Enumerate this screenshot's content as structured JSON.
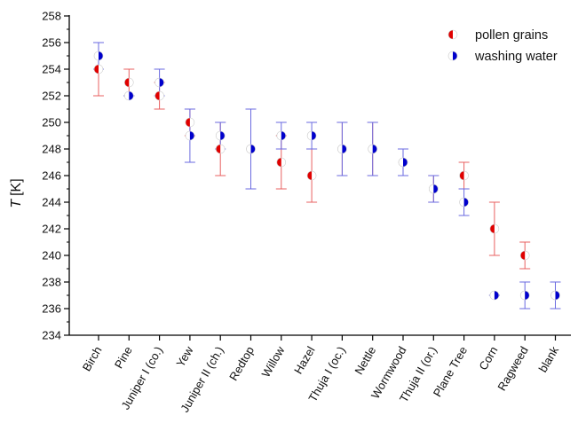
{
  "chart_data": {
    "type": "scatter",
    "title": "",
    "ylabel_symbol": "T",
    "ylabel_unit": "[K]",
    "xlabel": "",
    "categories": [
      "Birch",
      "Pine",
      "Juniper I (co.)",
      "Yew",
      "Juniper II (ch.)",
      "Redtop",
      "Willow",
      "Hazel",
      "Thuja I (oc.)",
      "Nettle",
      "Wormwood",
      "Thuja II (or.)",
      "Plane Tree",
      "Corn",
      "Ragweed",
      "blank"
    ],
    "ylim": [
      234,
      258
    ],
    "yticks": [
      234,
      236,
      238,
      240,
      242,
      244,
      246,
      248,
      250,
      252,
      254,
      256,
      258
    ],
    "grid": false,
    "legend_position": "top-right",
    "series": [
      {
        "name": "pollen grains",
        "color": "#e00000",
        "marker": "half-filled-left-circle",
        "points": [
          {
            "category": "Birch",
            "y": 254,
            "err_low": 252,
            "err_high": 256
          },
          {
            "category": "Pine",
            "y": 253,
            "err_low": 252,
            "err_high": 254
          },
          {
            "category": "Juniper I (co.)",
            "y": 252,
            "err_low": 251,
            "err_high": 253
          },
          {
            "category": "Yew",
            "y": 250,
            "err_low": 249,
            "err_high": 251
          },
          {
            "category": "Juniper II (ch.)",
            "y": 248,
            "err_low": 246,
            "err_high": 250
          },
          {
            "category": "Redtop",
            "y": 248,
            "err_low": 245,
            "err_high": 251
          },
          {
            "category": "Willow",
            "y": 247,
            "err_low": 245,
            "err_high": 249
          },
          {
            "category": "Hazel",
            "y": 246,
            "err_low": 244,
            "err_high": 248
          },
          {
            "category": "Thuja I (oc.)",
            "y": 248,
            "err_low": 246,
            "err_high": 250
          },
          {
            "category": "Nettle",
            "y": 248,
            "err_low": 246,
            "err_high": 250
          },
          {
            "category": "Wormwood",
            "y": 247,
            "err_low": 246,
            "err_high": 248
          },
          {
            "category": "Thuja II (or.)",
            "y": 245,
            "err_low": 244,
            "err_high": 246
          },
          {
            "category": "Plane Tree",
            "y": 246,
            "err_low": 245,
            "err_high": 247
          },
          {
            "category": "Corn",
            "y": 242,
            "err_low": 240,
            "err_high": 244
          },
          {
            "category": "Ragweed",
            "y": 240,
            "err_low": 239,
            "err_high": 241
          },
          {
            "category": "blank",
            "y": 237,
            "err_low": 236,
            "err_high": 238
          }
        ]
      },
      {
        "name": "washing water",
        "color": "#0000cc",
        "marker": "half-filled-right-circle",
        "points": [
          {
            "category": "Birch",
            "y": 255,
            "err_low": 254,
            "err_high": 256
          },
          {
            "category": "Pine",
            "y": 252,
            "err_low": 252,
            "err_high": 252
          },
          {
            "category": "Juniper I (co.)",
            "y": 253,
            "err_low": 252,
            "err_high": 254
          },
          {
            "category": "Yew",
            "y": 249,
            "err_low": 247,
            "err_high": 251
          },
          {
            "category": "Juniper II (ch.)",
            "y": 249,
            "err_low": 248,
            "err_high": 250
          },
          {
            "category": "Redtop",
            "y": 248,
            "err_low": 245,
            "err_high": 251
          },
          {
            "category": "Willow",
            "y": 249,
            "err_low": 248,
            "err_high": 250
          },
          {
            "category": "Hazel",
            "y": 249,
            "err_low": 248,
            "err_high": 250
          },
          {
            "category": "Thuja I (oc.)",
            "y": 248,
            "err_low": 246,
            "err_high": 250
          },
          {
            "category": "Nettle",
            "y": 248,
            "err_low": 246,
            "err_high": 250
          },
          {
            "category": "Wormwood",
            "y": 247,
            "err_low": 246,
            "err_high": 248
          },
          {
            "category": "Thuja II (or.)",
            "y": 245,
            "err_low": 244,
            "err_high": 246
          },
          {
            "category": "Plane Tree",
            "y": 244,
            "err_low": 243,
            "err_high": 245
          },
          {
            "category": "Corn",
            "y": 237,
            "err_low": 237,
            "err_high": 237
          },
          {
            "category": "Ragweed",
            "y": 237,
            "err_low": 236,
            "err_high": 238
          },
          {
            "category": "blank",
            "y": 237,
            "err_low": 236,
            "err_high": 238
          }
        ]
      }
    ]
  }
}
